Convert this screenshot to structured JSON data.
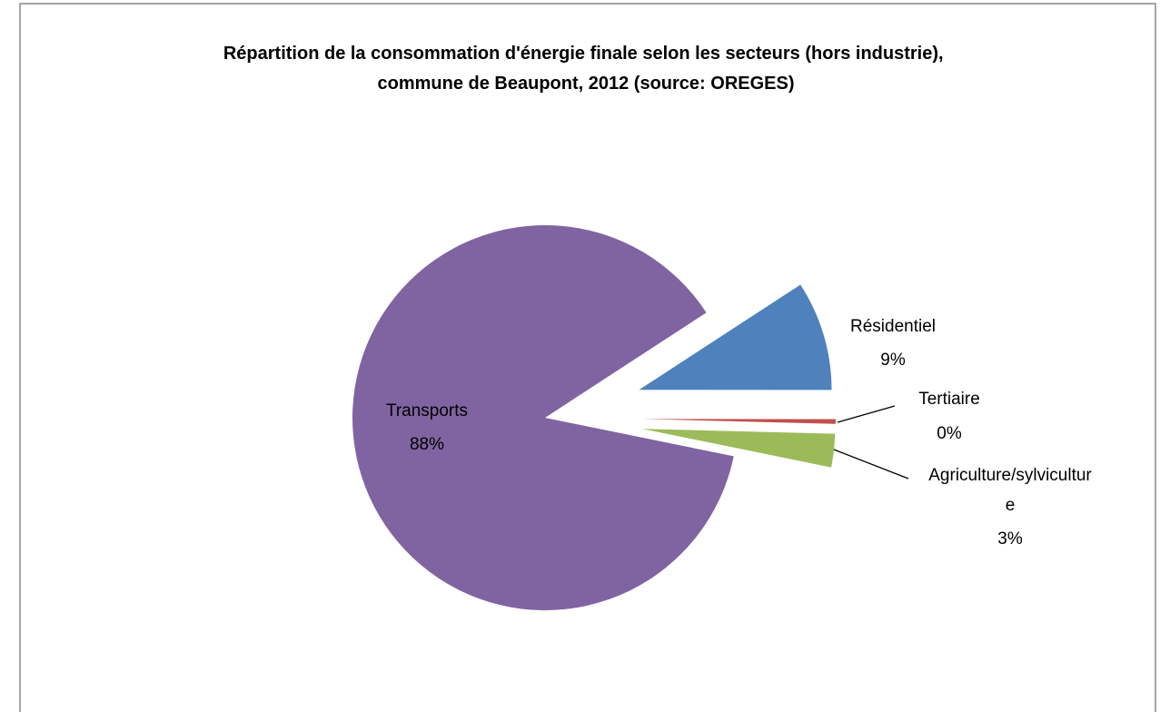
{
  "chart_data": {
    "type": "pie",
    "title": "Répartition de la consommation d'énergie finale selon les secteurs (hors industrie), commune de Beaupont, 2012 (source: OREGES)",
    "categories": [
      "Résidentiel",
      "Tertiaire",
      "Agriculture/sylviculture",
      "Transports"
    ],
    "values": [
      9.2,
      0.4,
      2.8,
      87.6
    ],
    "value_labels": [
      "9%",
      "0%",
      "3%",
      "88%"
    ],
    "colors": [
      "#4f81bd",
      "#c0504d",
      "#9bbb59",
      "#8064a2"
    ]
  }
}
